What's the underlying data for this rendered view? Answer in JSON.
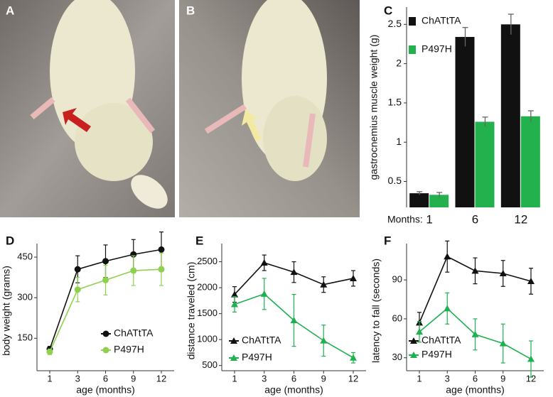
{
  "panel_labels": [
    "A",
    "B",
    "C",
    "D",
    "E",
    "F"
  ],
  "chart_data": [
    {
      "type": "bar",
      "ylabel": "gastrocnemius muscle weight (g)",
      "x_prefix": "Months:",
      "categories": [
        "1",
        "6",
        "12"
      ],
      "series": [
        {
          "name": "ChATtTA",
          "color": "#111111",
          "values": [
            0.35,
            2.34,
            2.5
          ],
          "errors": [
            0.02,
            0.12,
            0.13
          ]
        },
        {
          "name": "P497H",
          "color": "#22b14c",
          "values": [
            0.33,
            1.26,
            1.33
          ],
          "errors": [
            0.03,
            0.06,
            0.07
          ]
        }
      ],
      "ylim": [
        0.17,
        2.72
      ],
      "yticks": [
        0.5,
        1.0,
        1.5,
        2.0,
        2.5
      ]
    },
    {
      "type": "line",
      "xlabel": "age (months)",
      "ylabel": "body weight (grams)",
      "marker": "circle",
      "categories": [
        "1",
        "3",
        "6",
        "9",
        "12"
      ],
      "series": [
        {
          "name": "ChATtTA",
          "color": "#111111",
          "values": [
            110,
            405,
            435,
            460,
            478
          ],
          "errors": [
            10,
            50,
            60,
            55,
            65
          ]
        },
        {
          "name": "P497H",
          "color": "#8fd14f",
          "values": [
            100,
            330,
            365,
            400,
            405
          ],
          "errors": [
            10,
            45,
            55,
            55,
            60
          ]
        }
      ],
      "ylim": [
        30,
        500
      ],
      "yticks": [
        150,
        300,
        450
      ]
    },
    {
      "type": "line",
      "xlabel": "age (months)",
      "ylabel": "distance traveled (cm)",
      "marker": "triangle",
      "categories": [
        "1",
        "3",
        "6",
        "9",
        "12"
      ],
      "series": [
        {
          "name": "ChATtTA",
          "color": "#111111",
          "values": [
            1870,
            2480,
            2300,
            2060,
            2180
          ],
          "errors": [
            150,
            150,
            200,
            150,
            150
          ]
        },
        {
          "name": "P497H",
          "color": "#1fb050",
          "values": [
            1680,
            1880,
            1370,
            980,
            650
          ],
          "errors": [
            150,
            300,
            500,
            300,
            100
          ]
        }
      ],
      "ylim": [
        400,
        2850
      ],
      "yticks": [
        500,
        1000,
        1500,
        2000,
        2500
      ]
    },
    {
      "type": "line",
      "xlabel": "age (months)",
      "ylabel": "latency to fall (seconds)",
      "marker": "triangle",
      "categories": [
        "1",
        "3",
        "6",
        "9",
        "12"
      ],
      "series": [
        {
          "name": "ChATtTA",
          "color": "#111111",
          "values": [
            57,
            108,
            97,
            95,
            89
          ],
          "errors": [
            8,
            12,
            10,
            10,
            10
          ]
        },
        {
          "name": "P497H",
          "color": "#1fb050",
          "values": [
            50,
            68,
            48,
            41,
            29
          ],
          "errors": [
            8,
            12,
            12,
            15,
            14
          ]
        }
      ],
      "ylim": [
        20,
        118
      ],
      "yticks": [
        30,
        60,
        90
      ]
    }
  ]
}
